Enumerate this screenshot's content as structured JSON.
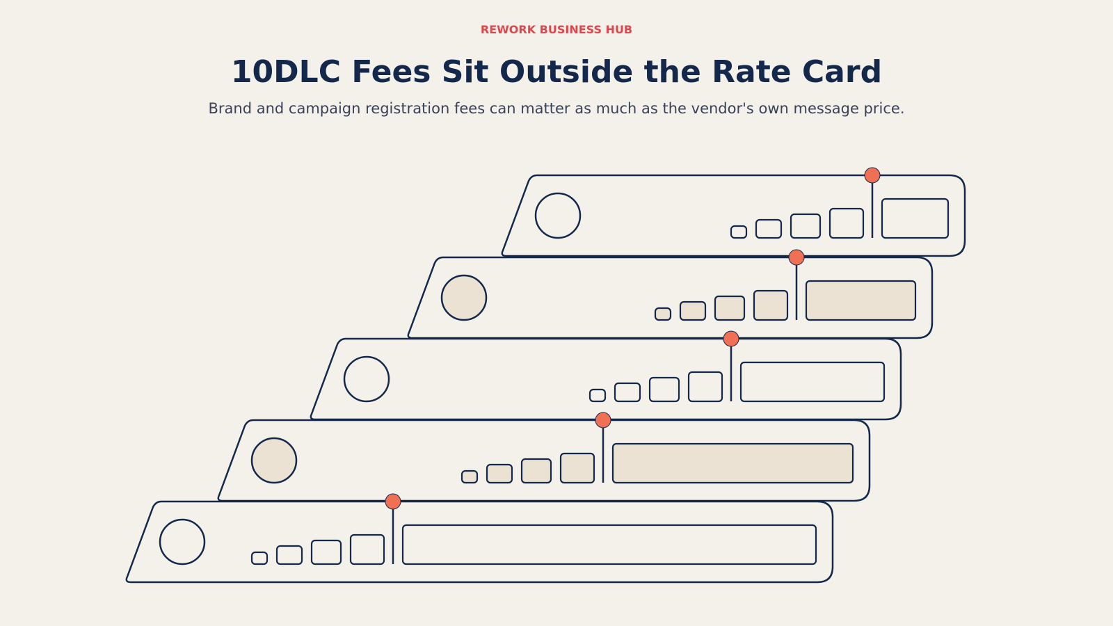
{
  "header": {
    "kicker": "REWORK BUSINESS HUB",
    "title": "10DLC Fees Sit Outside the Rate Card",
    "subtitle": "Brand and campaign registration fees can matter as much as the vendor's own message price."
  }
}
